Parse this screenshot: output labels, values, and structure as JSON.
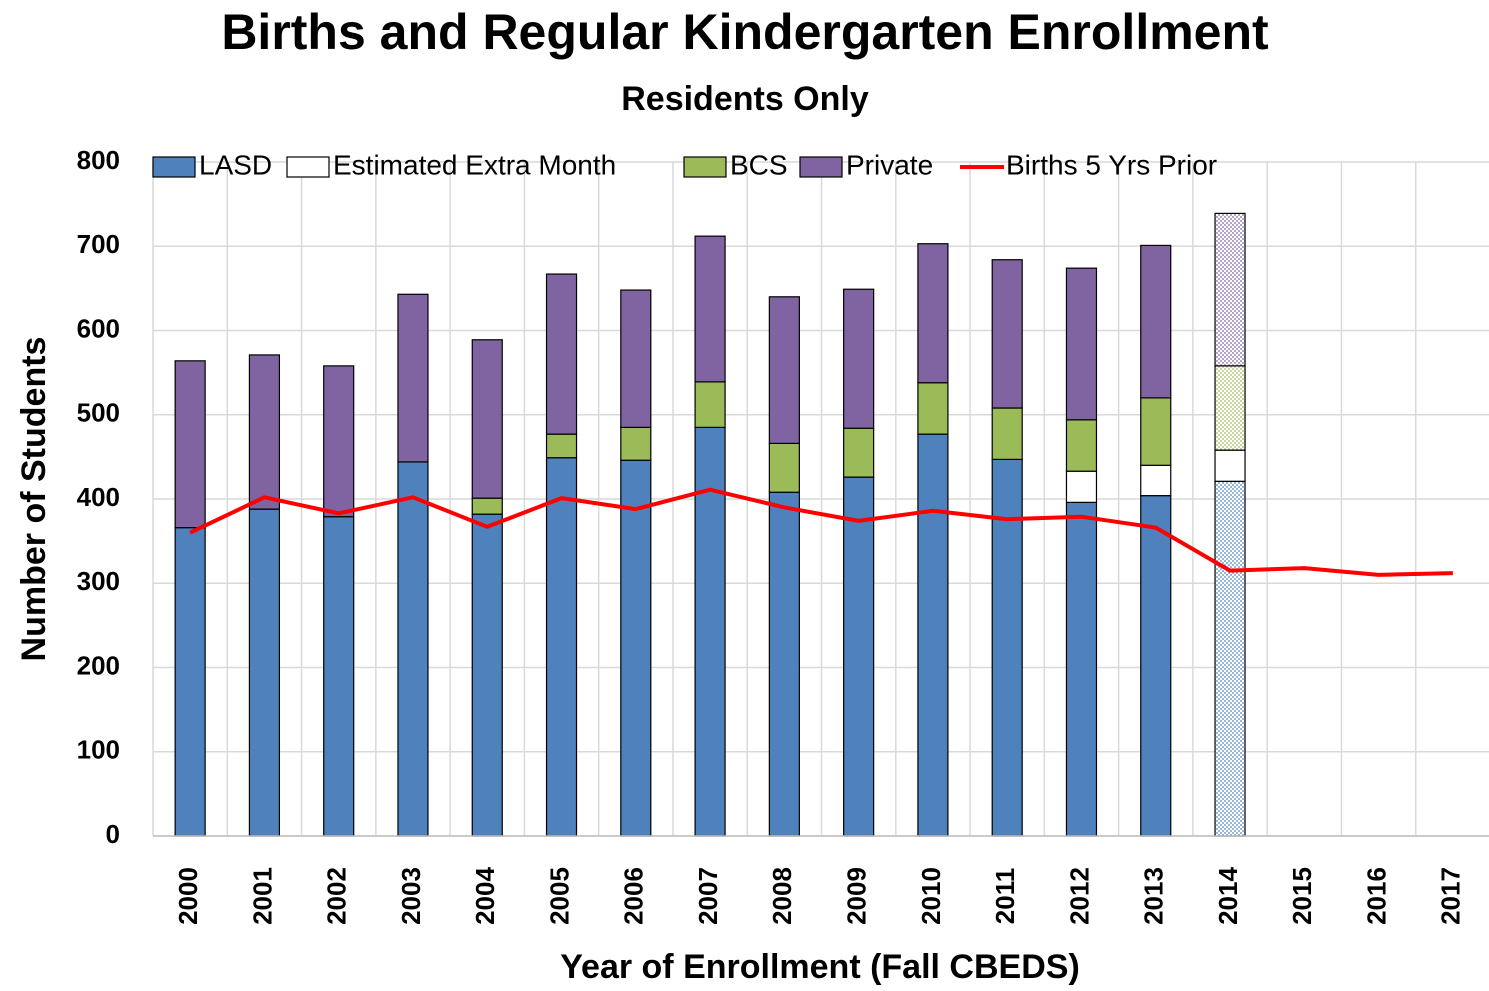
{
  "chart_data": {
    "type": "stacked_bar_line",
    "title": "Births and Regular Kindergarten Enrollment",
    "subtitle": "Residents Only",
    "x_label": "Year of Enrollment (Fall CBEDS)",
    "y_label": "Number of Students",
    "categories": [
      "2000",
      "2001",
      "2002",
      "2003",
      "2004",
      "2005",
      "2006",
      "2007",
      "2008",
      "2009",
      "2010",
      "2011",
      "2012",
      "2013",
      "2014",
      "2015",
      "2016",
      "2017"
    ],
    "series": [
      {
        "name": "LASD",
        "color": "#4f81bd",
        "kind": "bar",
        "values": [
          366,
          388,
          379,
          444,
          382,
          449,
          446,
          485,
          408,
          426,
          477,
          447,
          396,
          404,
          421,
          null,
          null,
          null
        ]
      },
      {
        "name": "Estimated Extra Month",
        "color": "#ffffff",
        "kind": "bar",
        "values": [
          null,
          null,
          null,
          null,
          null,
          null,
          null,
          null,
          null,
          null,
          null,
          null,
          37,
          36,
          37,
          null,
          null,
          null
        ]
      },
      {
        "name": "BCS",
        "color": "#9bbb59",
        "kind": "bar",
        "values": [
          null,
          null,
          null,
          null,
          19,
          28,
          39,
          54,
          58,
          58,
          61,
          61,
          61,
          80,
          100,
          null,
          null,
          null
        ]
      },
      {
        "name": "Private",
        "color": "#8064a2",
        "kind": "bar",
        "values": [
          198,
          183,
          179,
          199,
          188,
          190,
          163,
          173,
          174,
          165,
          165,
          176,
          180,
          181,
          181,
          null,
          null,
          null
        ]
      },
      {
        "name": "Births 5 Yrs Prior",
        "color": "#ff0000",
        "kind": "line",
        "values": [
          360,
          402,
          383,
          402,
          367,
          401,
          388,
          411,
          390,
          374,
          386,
          376,
          379,
          366,
          315,
          318,
          310,
          312
        ]
      }
    ],
    "hatched_categories": [
      "2014"
    ],
    "ylim": [
      0,
      800
    ],
    "yticks": [
      0,
      100,
      200,
      300,
      400,
      500,
      600,
      700,
      800
    ],
    "grid": true,
    "legend": "top"
  }
}
